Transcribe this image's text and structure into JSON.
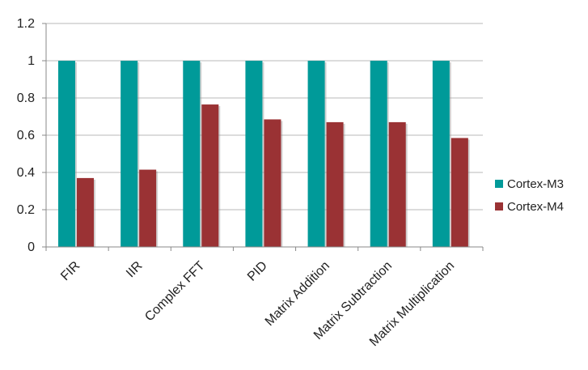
{
  "chart_data": {
    "type": "bar",
    "categories": [
      "FIR",
      "IIR",
      "Complex FFT",
      "PID",
      "Matrix Addition",
      "Matrix Subtraction",
      "Matrix Multiplication"
    ],
    "series": [
      {
        "name": "Cortex-M3",
        "color": "#009a99",
        "values": [
          1,
          1,
          1,
          1,
          1,
          1,
          1
        ]
      },
      {
        "name": "Cortex-M4",
        "color": "#9a3234",
        "values": [
          0.37,
          0.415,
          0.765,
          0.685,
          0.67,
          0.67,
          0.585
        ]
      }
    ],
    "y_ticks": [
      "0",
      "0.2",
      "0.4",
      "0.6",
      "0.8",
      "1",
      "1.2"
    ],
    "ylim": [
      0,
      1.2
    ],
    "grid": true,
    "legend_position": "right"
  }
}
